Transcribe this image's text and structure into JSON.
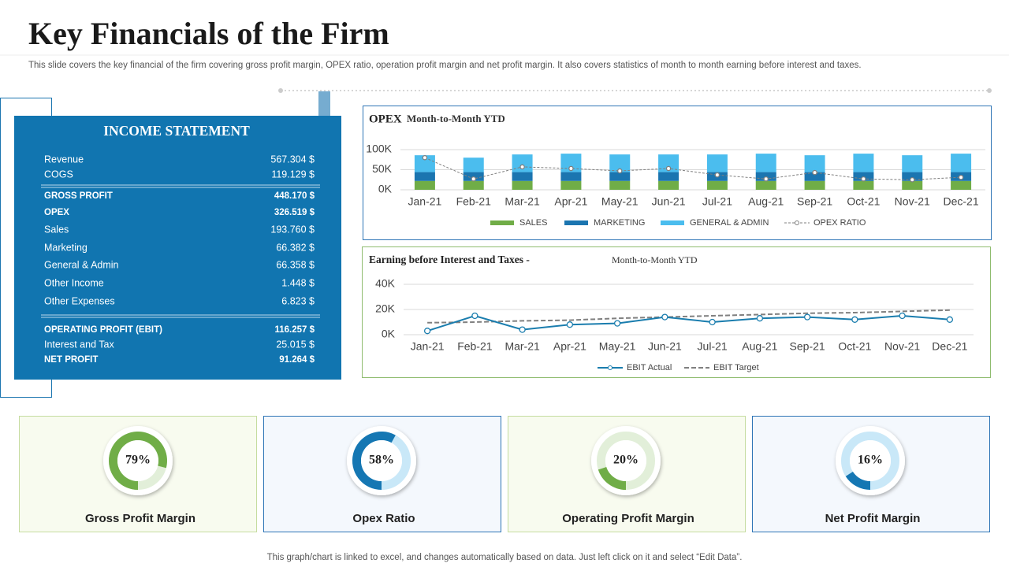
{
  "header": {
    "title": "Key Financials of the Firm",
    "subtitle": "This slide covers the key financial of the firm covering gross profit margin, OPEX ratio, operation profit margin and net profit margin. It also covers statistics of month to month earning before interest and taxes."
  },
  "income_statement": {
    "title": "INCOME STATEMENT",
    "sections": [
      [
        {
          "label": "Revenue",
          "value": "567.304 $"
        },
        {
          "label": "COGS",
          "value": "119.129 $"
        }
      ],
      [
        {
          "label": "GROSS PROFIT",
          "value": "448.170 $",
          "bold": true
        },
        {
          "label": "OPEX",
          "value": "326.519 $",
          "bold": true
        },
        {
          "label": "Sales",
          "value": "193.760 $"
        },
        {
          "label": "Marketing",
          "value": "66.382 $"
        },
        {
          "label": "General & Admin",
          "value": "66.358 $"
        },
        {
          "label": "Other Income",
          "value": "1.448 $"
        },
        {
          "label": "Other Expenses",
          "value": "6.823 $"
        }
      ],
      [
        {
          "label": "OPERATING  PROFIT (EBIT)",
          "value": "116.257 $",
          "bold": true
        },
        {
          "label": "Interest and Tax",
          "value": "25.015 $"
        },
        {
          "label": "NET PROFIT",
          "value": "91.264 $",
          "bold": true
        }
      ]
    ]
  },
  "chart_data": [
    {
      "type": "bar",
      "stacked": true,
      "title": "OPEX",
      "subtitle": "Month-to-Month  YTD",
      "categories": [
        "Jan-21",
        "Feb-21",
        "Mar-21",
        "Apr-21",
        "May-21",
        "Jun-21",
        "Jul-21",
        "Aug-21",
        "Sep-21",
        "Oct-21",
        "Nov-21",
        "Dec-21"
      ],
      "ylim": [
        0,
        100000
      ],
      "yticks": [
        {
          "value": 0,
          "label": "0K"
        },
        {
          "value": 50000,
          "label": "50K"
        },
        {
          "value": 100000,
          "label": "100K"
        }
      ],
      "y2lim": [
        0,
        100
      ],
      "grid": true,
      "series": [
        {
          "name": "SALES",
          "color": "#70ad47",
          "values": [
            22000,
            22000,
            22000,
            22000,
            22000,
            22000,
            22000,
            22000,
            22000,
            22000,
            22000,
            22000
          ]
        },
        {
          "name": "MARKETING",
          "color": "#1b75b0",
          "values": [
            22000,
            22000,
            22000,
            22000,
            22000,
            22000,
            22000,
            22000,
            22000,
            22000,
            22000,
            22000
          ]
        },
        {
          "name": "GENERAL & ADMIN",
          "color": "#4bbdee",
          "values": [
            42000,
            36000,
            44000,
            46000,
            44000,
            44000,
            44000,
            46000,
            42000,
            46000,
            42000,
            46000
          ]
        },
        {
          "name": "OPEX RATIO",
          "type": "line",
          "axis": "y2",
          "color": "#7f7f7f",
          "dashed": true,
          "values": [
            80,
            27,
            57,
            53,
            47,
            53,
            37,
            27,
            43,
            27,
            25,
            31
          ]
        }
      ]
    },
    {
      "type": "line",
      "title": "Earning before Interest and Taxes -",
      "subtitle": "Month-to-Month YTD",
      "categories": [
        "Jan-21",
        "Feb-21",
        "Mar-21",
        "Apr-21",
        "May-21",
        "Jun-21",
        "Jul-21",
        "Aug-21",
        "Sep-21",
        "Oct-21",
        "Nov-21",
        "Dec-21"
      ],
      "ylim": [
        0,
        40000
      ],
      "yticks": [
        {
          "value": 0,
          "label": "0K"
        },
        {
          "value": 20000,
          "label": "20K"
        },
        {
          "value": 40000,
          "label": "40K"
        }
      ],
      "grid": true,
      "series": [
        {
          "name": "EBIT Actual",
          "color": "#1a7dae",
          "markers": true,
          "values": [
            3000,
            15000,
            4000,
            8000,
            9000,
            14000,
            10000,
            13000,
            14000,
            12000,
            15000,
            12000
          ]
        },
        {
          "name": "EBIT Target",
          "color": "#808080",
          "dashed": true,
          "values": [
            9500,
            10000,
            11000,
            11500,
            13000,
            14000,
            15000,
            16000,
            17000,
            17500,
            18500,
            19500
          ]
        }
      ]
    },
    {
      "type": "donut",
      "title": "Gross Profit Margin",
      "values": [
        79
      ],
      "value_labels": [
        "79%"
      ],
      "color": "#70ad47",
      "track_color": "#e2efd9"
    },
    {
      "type": "donut",
      "title": "Opex Ratio",
      "values": [
        58
      ],
      "value_labels": [
        "58%"
      ],
      "color": "#1577b3",
      "track_color": "#c9e8f8"
    },
    {
      "type": "donut",
      "title": "Operating Profit Margin",
      "values": [
        20
      ],
      "value_labels": [
        "20%"
      ],
      "color": "#70ad47",
      "track_color": "#e2efd9"
    },
    {
      "type": "donut",
      "title": "Net Profit Margin",
      "values": [
        16
      ],
      "value_labels": [
        "16%"
      ],
      "color": "#1577b3",
      "track_color": "#c9e8f8"
    }
  ],
  "footer": "This graph/chart is linked to excel,  and changes automatically based on data. Just left click on it and select “Edit Data”."
}
